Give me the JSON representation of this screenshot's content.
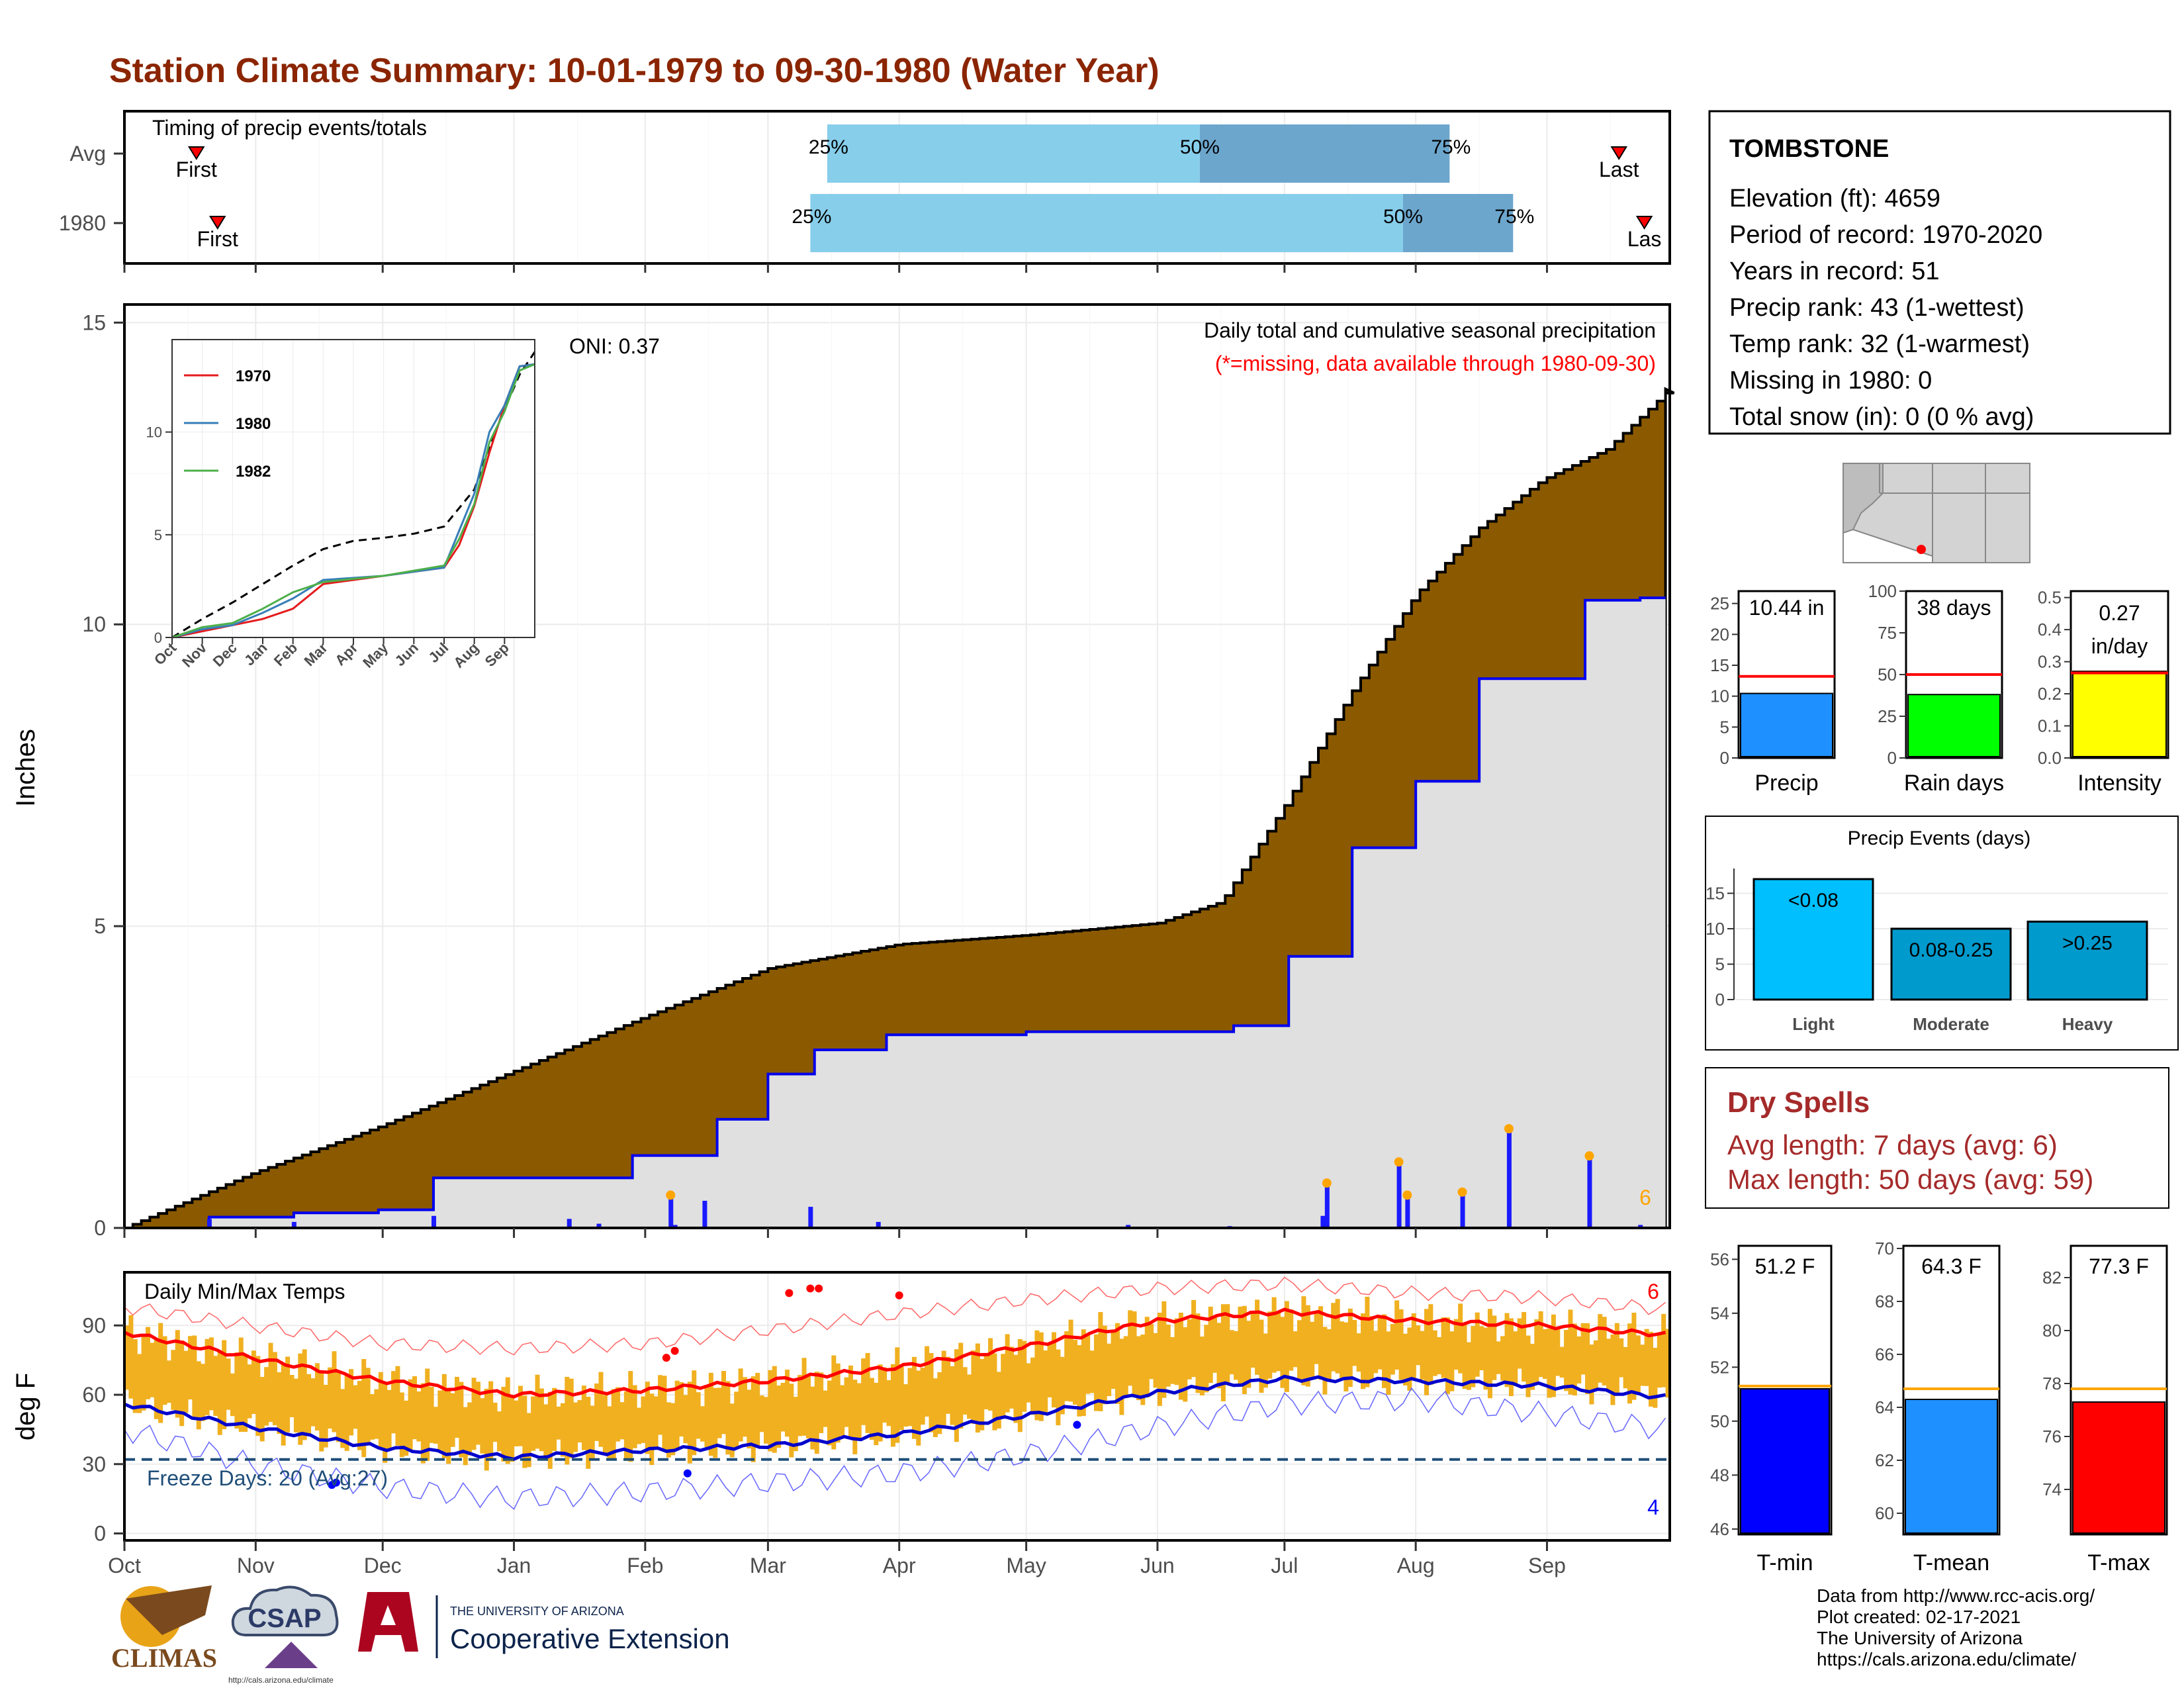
{
  "title": "Station Climate Summary: 10-01-1979 to 09-30-1980 (Water Year)",
  "colors": {
    "title": "#8b2500",
    "cumulative_avg_fill": "#8b5a00",
    "cumulative_obs_fill": "#e0e0e0",
    "obs_line": "#0000ee",
    "daily_bar": "#1a1aff",
    "extreme_marker": "#ffa500",
    "temp_bar": "#f0b020",
    "tmax_avg": "#ff0000",
    "tmin_avg": "#0000cc",
    "freeze_line": "#1f4e79",
    "dry_spell_text": "#a52a2a",
    "precip_bar": "#1e90ff",
    "raindays_bar": "#00ff00",
    "intensity_bar": "#ffff00",
    "light_bar": "#00bfff",
    "moderate_bar": "#009acd",
    "heavy_bar": "#009acd",
    "tmin_bar": "#0000ff",
    "tmean_bar": "#1e90ff",
    "tmax_bar": "#ff0000",
    "avg_line_temp": "#ffa500"
  },
  "timing": {
    "caption": "Timing of precip events/totals",
    "rows": [
      {
        "label": "Avg",
        "first_label": "First",
        "last_label": "Last",
        "first_day": 17,
        "last_day": 353,
        "p25": 166,
        "p50": 254,
        "p75": 313,
        "p25_label": "25%",
        "p50_label": "50%",
        "p75_label": "75%"
      },
      {
        "label": "1980",
        "first_label": "First",
        "last_label": "Las",
        "first_day": 22,
        "last_day": 359,
        "p25": 162,
        "p50": 302,
        "p75": 328,
        "p25_label": "25%",
        "p50_label": "50%",
        "p75_label": "75%"
      }
    ]
  },
  "main_precip": {
    "ylabel": "Inches",
    "caption": "Daily total and cumulative seasonal precipitation",
    "missing_note": "(*=missing, data available through 1980-09-30)",
    "oni": "ONI: 0.37",
    "extremes_count": "6",
    "yticks": [
      "0",
      "5",
      "10",
      "15"
    ]
  },
  "inset": {
    "legend": [
      {
        "name": "1970",
        "color": "#e41a1c"
      },
      {
        "name": "1980",
        "color": "#377eb8"
      },
      {
        "name": "1982",
        "color": "#4daf4a"
      }
    ],
    "yticks": [
      "0",
      "5",
      "10"
    ],
    "xticks": [
      "Oct",
      "Nov",
      "Dec",
      "Jan",
      "Feb",
      "Mar",
      "Apr",
      "May",
      "Jun",
      "Jul",
      "Aug",
      "Sep"
    ]
  },
  "temps": {
    "caption": "Daily Min/Max Temps",
    "ylabel": "deg F",
    "freeze_label": "Freeze Days: 20 (Avg:27)",
    "hi_count": "6",
    "lo_count": "4",
    "yticks": [
      "0",
      "30",
      "60",
      "90"
    ]
  },
  "months": [
    "Oct",
    "Nov",
    "Dec",
    "Jan",
    "Feb",
    "Mar",
    "Apr",
    "May",
    "Jun",
    "Jul",
    "Aug",
    "Sep"
  ],
  "station": {
    "name": "TOMBSTONE",
    "elevation": "Elevation (ft): 4659",
    "period": "Period of record: 1970-2020",
    "years": "Years in record: 51",
    "precip_rank": "Precip rank: 43 (1-wettest)",
    "temp_rank": "Temp rank: 32 (1-warmest)",
    "missing": "Missing in 1980: 0",
    "snow": "Total snow (in): 0 (0 % avg)"
  },
  "mini_bars": [
    {
      "id": "precip",
      "label": "Precip",
      "value": 10.44,
      "avg": 13.2,
      "text": "10.44 in",
      "text2": "",
      "ymax": 27,
      "ticks": [
        "0",
        "5",
        "10",
        "15",
        "20",
        "25"
      ],
      "tickvals": [
        0,
        5,
        10,
        15,
        20,
        25
      ]
    },
    {
      "id": "raindays",
      "label": "Rain days",
      "value": 38,
      "avg": 50,
      "text": "38 days",
      "text2": "",
      "ymax": 100,
      "ticks": [
        "0",
        "25",
        "50",
        "75",
        "100"
      ],
      "tickvals": [
        0,
        25,
        50,
        75,
        100
      ]
    },
    {
      "id": "intensity",
      "label": "Intensity",
      "value": 0.27,
      "avg": 0.265,
      "text": "0.27",
      "text2": "in/day",
      "ymax": 0.52,
      "ticks": [
        "0.0",
        "0.1",
        "0.2",
        "0.3",
        "0.4",
        "0.5"
      ],
      "tickvals": [
        0,
        0.1,
        0.2,
        0.3,
        0.4,
        0.5
      ]
    }
  ],
  "events": {
    "title": "Precip Events (days)",
    "categories": [
      "Light",
      "Moderate",
      "Heavy"
    ],
    "values": [
      17,
      10,
      11
    ],
    "labels": [
      "<0.08",
      "0.08-0.25",
      ">0.25"
    ],
    "ticks": [
      "0",
      "5",
      "10",
      "15"
    ]
  },
  "dry_spells": {
    "title": "Dry Spells",
    "avg": "Avg length: 7 days (avg: 6)",
    "max": "Max length: 50 days (avg: 59)"
  },
  "temp_bars": [
    {
      "id": "tmin",
      "label": "T-min",
      "text": "51.2 F",
      "value": 51.2,
      "avg": 51.3,
      "ymin": 45.8,
      "ymax": 56.5,
      "ticks": [
        "46",
        "48",
        "50",
        "52",
        "54",
        "56"
      ],
      "tickvals": [
        46,
        48,
        50,
        52,
        54,
        56
      ]
    },
    {
      "id": "tmean",
      "label": "T-mean",
      "text": "64.3 F",
      "value": 64.3,
      "avg": 64.7,
      "ymin": 59.2,
      "ymax": 70.1,
      "ticks": [
        "60",
        "62",
        "64",
        "66",
        "68",
        "70"
      ],
      "tickvals": [
        60,
        62,
        64,
        66,
        68,
        70
      ]
    },
    {
      "id": "tmax",
      "label": "T-max",
      "text": "77.3 F",
      "value": 77.3,
      "avg": 77.8,
      "ymin": 72.3,
      "ymax": 83.2,
      "ticks": [
        "74",
        "76",
        "78",
        "80",
        "82"
      ],
      "tickvals": [
        74,
        76,
        78,
        80,
        82
      ]
    }
  ],
  "footer": {
    "lines": [
      "Data from http://www.rcc-acis.org/",
      "Plot created: 02-17-2021",
      "The University of Arizona",
      "https://cals.arizona.edu/climate/"
    ]
  },
  "logos": {
    "climas": "CLIMAS",
    "csap": "CSAP",
    "csap_url": "http://cals.arizona.edu/climate",
    "ua_small": "THE UNIVERSITY OF ARIZONA",
    "ua_big": "Cooperative Extension"
  },
  "chart_data": [
    {
      "type": "area",
      "title": "Daily total and cumulative seasonal precipitation",
      "ylabel": "Inches",
      "ylim": [
        0,
        15.3
      ],
      "xlabel": "",
      "note": "(*=missing, data available through 1980-09-30)",
      "x_unit": "day of water year (0 = Oct 1)",
      "cumulative_avg": {
        "x": [
          0,
          30,
          61,
          92,
          123,
          152,
          183,
          213,
          244,
          259,
          274,
          290,
          305,
          320,
          335,
          350,
          365
        ],
        "y": [
          0,
          0.9,
          1.7,
          2.6,
          3.5,
          4.3,
          4.7,
          4.85,
          5.05,
          5.4,
          7.0,
          8.9,
          10.5,
          11.6,
          12.4,
          12.9,
          13.9
        ]
      },
      "cumulative_obs": {
        "x": [
          0,
          20,
          40,
          60,
          73,
          120,
          140,
          152,
          163,
          180,
          213,
          262,
          275,
          290,
          305,
          320,
          345,
          358,
          364
        ],
        "y": [
          0,
          0.18,
          0.25,
          0.3,
          0.83,
          1.2,
          1.8,
          2.55,
          2.95,
          3.2,
          3.25,
          3.35,
          4.5,
          6.3,
          7.4,
          9.1,
          10.4,
          10.44,
          10.44
        ]
      },
      "daily_precip": {
        "x": [
          20,
          40,
          73,
          105,
          112,
          129,
          130,
          137,
          162,
          178,
          237,
          261,
          283,
          284,
          301,
          303,
          316,
          327,
          346,
          358
        ],
        "y": [
          0.15,
          0.1,
          0.2,
          0.15,
          0.07,
          0.5,
          0.05,
          0.45,
          0.35,
          0.1,
          0.05,
          0.03,
          0.2,
          0.7,
          1.05,
          0.5,
          0.55,
          1.6,
          1.15,
          0.05
        ]
      },
      "extreme_days_count": 6
    },
    {
      "type": "line",
      "title": "",
      "xlabel": "",
      "ylim": [
        0,
        14.5
      ],
      "x_unit": "month index (0 = Oct 1)",
      "series": [
        {
          "name": "",
          "style": "dashed",
          "x": [
            0,
            1,
            2,
            3,
            4,
            5,
            6,
            7,
            8,
            9,
            9.5,
            10,
            10.5,
            11,
            11.5,
            12
          ],
          "y": [
            0,
            0.9,
            1.7,
            2.6,
            3.5,
            4.3,
            4.7,
            4.85,
            5.05,
            5.4,
            6.3,
            7.2,
            9.3,
            11.1,
            12.8,
            13.9
          ]
        },
        {
          "name": "1970",
          "x": [
            0,
            1,
            2,
            3,
            4,
            5,
            6,
            7,
            8,
            9,
            9.5,
            10,
            10.5,
            11,
            11.5,
            12
          ],
          "y": [
            0,
            0.3,
            0.6,
            0.9,
            1.4,
            2.6,
            2.8,
            3.0,
            3.2,
            3.4,
            4.5,
            6.4,
            9.0,
            11.3,
            13.2,
            13.3
          ]
        },
        {
          "name": "1980",
          "x": [
            0,
            1,
            2,
            3,
            4,
            5,
            6,
            7,
            8,
            9,
            9.5,
            10,
            10.5,
            11,
            11.5,
            12
          ],
          "y": [
            0,
            0.4,
            0.6,
            1.2,
            1.9,
            2.8,
            2.9,
            3.0,
            3.2,
            3.4,
            5.2,
            7.0,
            10.0,
            11.3,
            13.2,
            13.3
          ]
        },
        {
          "name": "1982",
          "x": [
            0,
            1,
            2,
            3,
            4,
            5,
            6,
            7,
            8,
            9,
            9.5,
            10,
            10.5,
            11,
            11.5,
            12
          ],
          "y": [
            0,
            0.5,
            0.7,
            1.4,
            2.2,
            2.7,
            2.85,
            3.0,
            3.25,
            3.5,
            4.8,
            6.5,
            9.5,
            11.0,
            13.0,
            13.3
          ]
        }
      ]
    },
    {
      "type": "bar",
      "title": "Daily Min/Max Temps",
      "ylabel": "deg F",
      "ylim": [
        -3,
        113
      ],
      "x_unit": "day of water year (0 = Oct 1)",
      "avg_tmax": {
        "x": [
          0,
          30,
          61,
          92,
          123,
          152,
          183,
          213,
          244,
          274,
          305,
          335,
          364
        ],
        "y": [
          87,
          76,
          66,
          60,
          62,
          66,
          72,
          81,
          92,
          96,
          92,
          90,
          86
        ]
      },
      "avg_tmin": {
        "x": [
          0,
          30,
          61,
          92,
          123,
          152,
          183,
          213,
          244,
          274,
          305,
          335,
          364
        ],
        "y": [
          56,
          46,
          37,
          33,
          36,
          38,
          43,
          51,
          61,
          67,
          66,
          64,
          59
        ]
      },
      "record_high": {
        "x": [
          0,
          30,
          61,
          92,
          123,
          152,
          183,
          213,
          244,
          274,
          305,
          335,
          364
        ],
        "y": [
          98,
          90,
          82,
          80,
          82,
          88,
          95,
          101,
          106,
          108,
          104,
          102,
          97
        ]
      },
      "record_low": {
        "x": [
          0,
          30,
          61,
          92,
          123,
          152,
          183,
          213,
          244,
          274,
          305,
          335,
          364
        ],
        "y": [
          45,
          30,
          20,
          15,
          18,
          22,
          26,
          34,
          46,
          56,
          58,
          52,
          45
        ]
      },
      "freeze_threshold": 32,
      "freeze_days": 20,
      "freeze_days_avg": 27
    },
    {
      "type": "bar",
      "title": "Precip Events (days)",
      "categories": [
        "Light",
        "Moderate",
        "Heavy"
      ],
      "values": [
        17,
        10,
        11
      ],
      "ylim": [
        0,
        18.5
      ]
    },
    {
      "type": "bar",
      "categories": [
        "Precip",
        "Rain days",
        "Intensity"
      ],
      "values": [
        10.44,
        38,
        0.27
      ],
      "units": [
        "in",
        "days",
        "in/day"
      ]
    },
    {
      "type": "bar",
      "categories": [
        "T-min",
        "T-mean",
        "T-max"
      ],
      "values": [
        51.2,
        64.3,
        77.3
      ],
      "units": "F"
    }
  ]
}
